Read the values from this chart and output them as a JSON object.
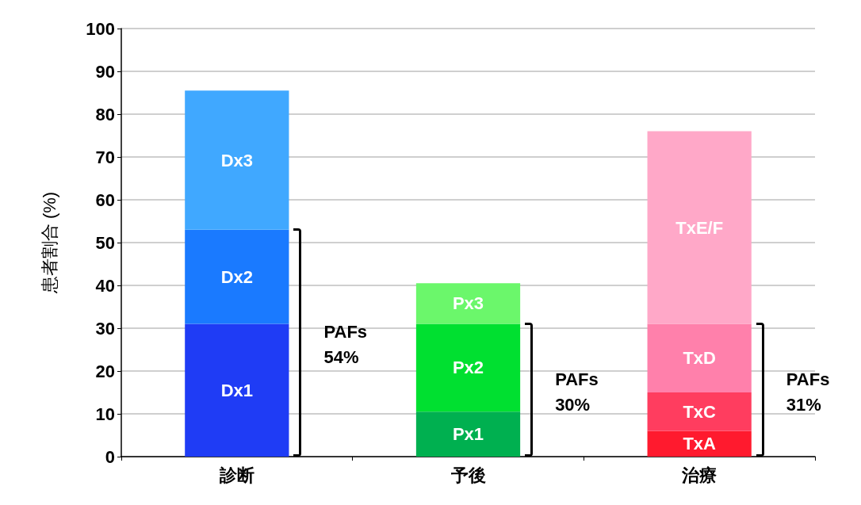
{
  "chart_data": {
    "type": "bar",
    "stacked": true,
    "ylabel": "患者割合 (%)",
    "categories": [
      "診断",
      "予後",
      "治療"
    ],
    "series": [
      {
        "name": "Dx1",
        "color": "#1f3cf5",
        "values": [
          31,
          null,
          null
        ]
      },
      {
        "name": "Dx2",
        "color": "#1a7aff",
        "values": [
          22,
          null,
          null
        ]
      },
      {
        "name": "Dx3",
        "color": "#40a8ff",
        "values": [
          32.5,
          null,
          null
        ]
      },
      {
        "name": "Px1",
        "color": "#00b050",
        "values": [
          null,
          10.5,
          null
        ]
      },
      {
        "name": "Px2",
        "color": "#00e030",
        "values": [
          null,
          20.5,
          null
        ]
      },
      {
        "name": "Px3",
        "color": "#6bf76b",
        "values": [
          null,
          9.5,
          null
        ]
      },
      {
        "name": "TxA",
        "color": "#ff1a2e",
        "values": [
          null,
          null,
          6
        ]
      },
      {
        "name": "TxC",
        "color": "#ff3d5f",
        "values": [
          null,
          null,
          9
        ]
      },
      {
        "name": "TxD",
        "color": "#ff80ab",
        "values": [
          null,
          null,
          16
        ]
      },
      {
        "name": "TxE/F",
        "color": "#ffa8c8",
        "values": [
          null,
          null,
          45
        ]
      }
    ],
    "ylim": [
      0,
      100
    ],
    "yticks": [
      0,
      10,
      20,
      30,
      40,
      50,
      60,
      70,
      80,
      90,
      100
    ],
    "grid": "y",
    "annotations": [
      "PAFs\n54%",
      "PAFs\n30%",
      "PAFs\n31%"
    ]
  }
}
